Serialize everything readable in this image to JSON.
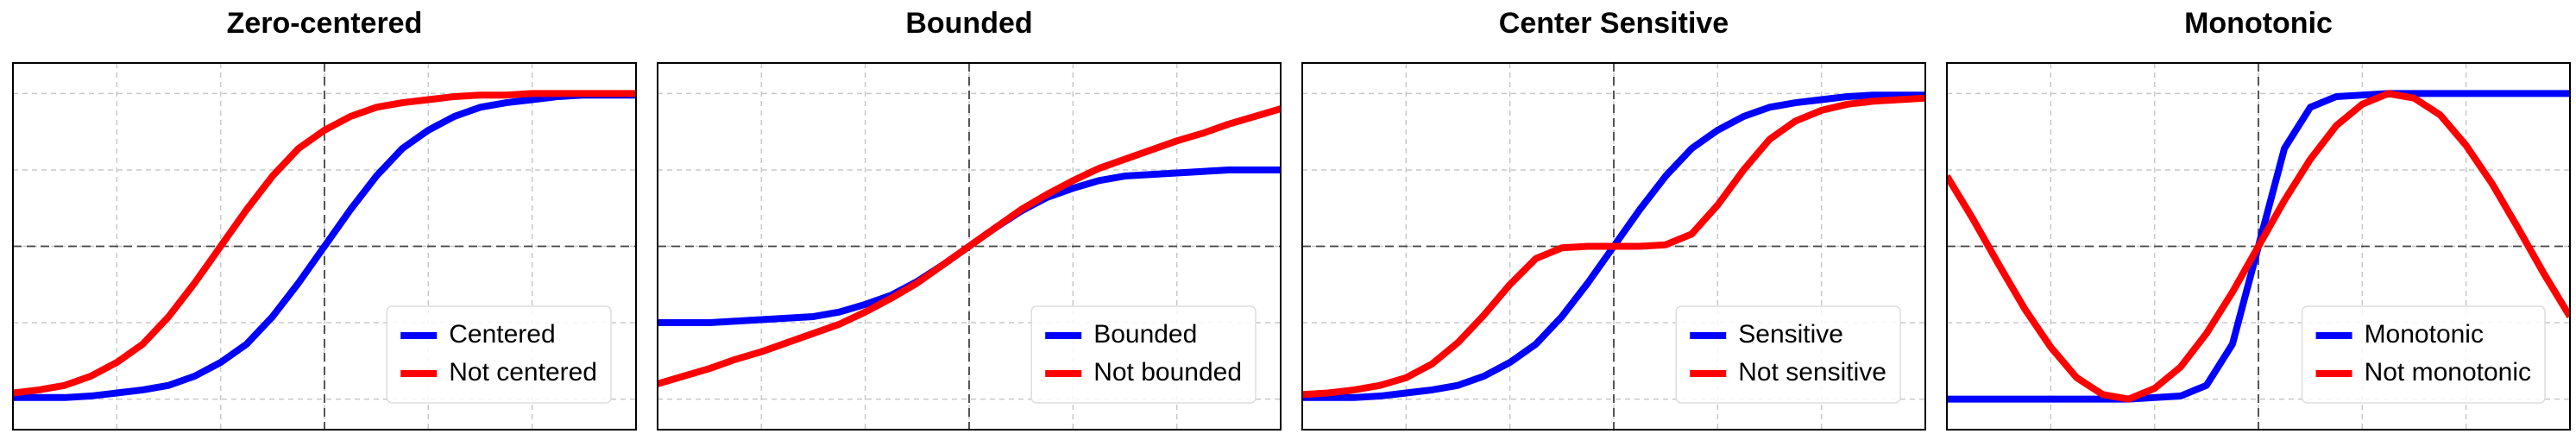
{
  "chart_data": [
    {
      "type": "line",
      "title": "Zero-centered",
      "x": [
        -3,
        -2.75,
        -2.5,
        -2.25,
        -2,
        -1.75,
        -1.5,
        -1.25,
        -1,
        -0.75,
        -0.5,
        -0.25,
        0,
        0.25,
        0.5,
        0.75,
        1,
        1.25,
        1.5,
        1.75,
        2,
        2.25,
        2.5,
        2.75,
        3
      ],
      "series": [
        {
          "name": "Centered",
          "color": "#0000ff",
          "values": [
            -0.99,
            -0.99,
            -0.99,
            -0.98,
            -0.96,
            -0.94,
            -0.91,
            -0.85,
            -0.76,
            -0.64,
            -0.46,
            -0.24,
            0,
            0.24,
            0.46,
            0.64,
            0.76,
            0.85,
            0.91,
            0.94,
            0.96,
            0.98,
            0.99,
            0.99,
            0.99
          ]
        },
        {
          "name": "Not centered",
          "color": "#ff0000",
          "values": [
            -0.96,
            -0.94,
            -0.91,
            -0.85,
            -0.76,
            -0.64,
            -0.46,
            -0.24,
            0,
            0.24,
            0.46,
            0.64,
            0.76,
            0.85,
            0.91,
            0.94,
            0.96,
            0.98,
            0.99,
            0.99,
            1,
            1,
            1,
            1,
            1
          ]
        }
      ],
      "xlim": [
        -3,
        3
      ],
      "ylim": [
        -1.2,
        1.2
      ],
      "xticks": [
        -2,
        -1,
        0,
        1,
        2
      ],
      "yticks": [
        -1,
        -0.5,
        0,
        0.5,
        1
      ],
      "grid": true,
      "zero_lines": true,
      "legend": "lower right"
    },
    {
      "type": "line",
      "title": "Bounded",
      "x": [
        -3,
        -2.75,
        -2.5,
        -2.25,
        -2,
        -1.75,
        -1.5,
        -1.25,
        -1,
        -0.75,
        -0.5,
        -0.25,
        0,
        0.25,
        0.5,
        0.75,
        1,
        1.25,
        1.5,
        1.75,
        2,
        2.25,
        2.5,
        2.75,
        3
      ],
      "series": [
        {
          "name": "Bounded",
          "color": "#0000ff",
          "values": [
            -0.5,
            -0.5,
            -0.5,
            -0.49,
            -0.48,
            -0.47,
            -0.46,
            -0.43,
            -0.38,
            -0.32,
            -0.23,
            -0.12,
            0,
            0.12,
            0.23,
            0.32,
            0.38,
            0.43,
            0.46,
            0.47,
            0.48,
            0.49,
            0.5,
            0.5,
            0.5
          ]
        },
        {
          "name": "Not bounded",
          "color": "#ff0000",
          "values": [
            -0.9,
            -0.85,
            -0.8,
            -0.74,
            -0.69,
            -0.63,
            -0.57,
            -0.51,
            -0.43,
            -0.34,
            -0.24,
            -0.12,
            0,
            0.12,
            0.24,
            0.34,
            0.43,
            0.51,
            0.57,
            0.63,
            0.69,
            0.74,
            0.8,
            0.85,
            0.9
          ]
        }
      ],
      "xlim": [
        -3,
        3
      ],
      "ylim": [
        -1.2,
        1.2
      ],
      "xticks": [
        -2,
        -1,
        0,
        1,
        2
      ],
      "yticks": [
        -1,
        -0.5,
        0,
        0.5,
        1
      ],
      "grid": true,
      "zero_lines": true,
      "legend": "lower right"
    },
    {
      "type": "line",
      "title": "Center Sensitive",
      "x": [
        -3,
        -2.75,
        -2.5,
        -2.25,
        -2,
        -1.75,
        -1.5,
        -1.25,
        -1,
        -0.75,
        -0.5,
        -0.25,
        0,
        0.25,
        0.5,
        0.75,
        1,
        1.25,
        1.5,
        1.75,
        2,
        2.25,
        2.5,
        2.75,
        3
      ],
      "series": [
        {
          "name": "Sensitive",
          "color": "#0000ff",
          "values": [
            -0.99,
            -0.99,
            -0.99,
            -0.98,
            -0.96,
            -0.94,
            -0.91,
            -0.85,
            -0.76,
            -0.64,
            -0.46,
            -0.24,
            0,
            0.24,
            0.46,
            0.64,
            0.76,
            0.85,
            0.91,
            0.94,
            0.96,
            0.98,
            0.99,
            0.99,
            0.99
          ]
        },
        {
          "name": "Not sensitive",
          "color": "#ff0000",
          "values": [
            -0.97,
            -0.96,
            -0.94,
            -0.91,
            -0.86,
            -0.77,
            -0.63,
            -0.45,
            -0.25,
            -0.08,
            -0.01,
            0,
            0,
            0,
            0.01,
            0.08,
            0.27,
            0.5,
            0.7,
            0.82,
            0.89,
            0.93,
            0.95,
            0.96,
            0.97
          ]
        }
      ],
      "xlim": [
        -3,
        3
      ],
      "ylim": [
        -1.2,
        1.2
      ],
      "xticks": [
        -2,
        -1,
        0,
        1,
        2
      ],
      "yticks": [
        -1,
        -0.5,
        0,
        0.5,
        1
      ],
      "grid": true,
      "zero_lines": true,
      "legend": "lower right"
    },
    {
      "type": "line",
      "title": "Monotonic",
      "x": [
        -3,
        -2.75,
        -2.5,
        -2.25,
        -2,
        -1.75,
        -1.5,
        -1.25,
        -1,
        -0.75,
        -0.5,
        -0.25,
        0,
        0.25,
        0.5,
        0.75,
        1,
        1.25,
        1.5,
        1.75,
        2,
        2.25,
        2.5,
        2.75,
        3
      ],
      "series": [
        {
          "name": "Monotonic",
          "color": "#0000ff",
          "values": [
            -1,
            -1,
            -1,
            -1,
            -1,
            -1,
            -1,
            -1,
            -0.99,
            -0.98,
            -0.91,
            -0.64,
            0,
            0.64,
            0.91,
            0.98,
            0.99,
            1,
            1,
            1,
            1,
            1,
            1,
            1,
            1
          ]
        },
        {
          "name": "Not monotonic",
          "color": "#ff0000",
          "values": [
            0.46,
            0.18,
            -0.12,
            -0.41,
            -0.66,
            -0.86,
            -0.97,
            -1,
            -0.93,
            -0.79,
            -0.57,
            -0.3,
            0,
            0.3,
            0.57,
            0.79,
            0.93,
            1,
            0.97,
            0.86,
            0.66,
            0.41,
            0.12,
            -0.18,
            -0.46
          ]
        }
      ],
      "xlim": [
        -3,
        3
      ],
      "ylim": [
        -1.2,
        1.2
      ],
      "xticks": [
        -2,
        -1,
        0,
        1,
        2
      ],
      "yticks": [
        -1,
        -0.5,
        0,
        0.5,
        1
      ],
      "grid": true,
      "zero_lines": true,
      "legend": "lower right"
    }
  ]
}
